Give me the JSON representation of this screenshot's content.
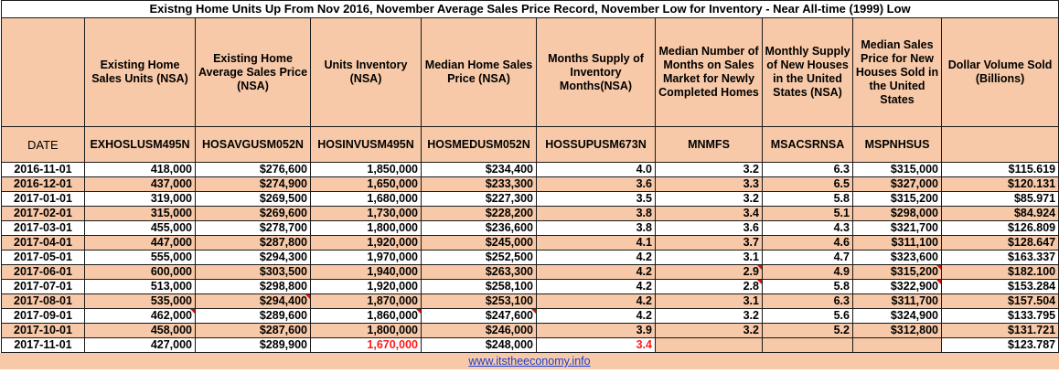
{
  "title": "Existng Home Units Up From Nov 2016, November Average Sales Price Record, November Low for Inventory - Near All-time (1999) Low",
  "headers": [
    "",
    "Existing Home Sales Units (NSA)",
    "Existing Home Average Sales Price (NSA)",
    "Units Inventory (NSA)",
    "Median Home Sales Price (NSA)",
    "Months Supply of Inventory Months(NSA)",
    "Median Number of Months on Sales Market for Newly Completed Homes",
    "Monthly Supply of New Houses in the United States (NSA)",
    "Median Sales Price for New Houses Sold in the United States",
    "Dollar Volume Sold (Billions)"
  ],
  "codes": [
    "DATE",
    "EXHOSLUSM495N",
    "HOSAVGUSM052N",
    "HOSINVUSM495N",
    "HOSMEDUSM052N",
    "HOSSUPUSM673N",
    "MNMFS",
    "MSACSRNSA",
    "MSPNHSUS",
    ""
  ],
  "rows": [
    [
      "2016-11-01",
      "418,000",
      "$276,600",
      "1,850,000",
      "$234,400",
      "4.0",
      "3.2",
      "6.3",
      "$315,000",
      "$115.619"
    ],
    [
      "2016-12-01",
      "437,000",
      "$274,900",
      "1,650,000",
      "$233,300",
      "3.6",
      "3.3",
      "6.5",
      "$327,000",
      "$120.131"
    ],
    [
      "2017-01-01",
      "319,000",
      "$269,500",
      "1,680,000",
      "$227,300",
      "3.5",
      "3.2",
      "5.8",
      "$315,200",
      "$85.971"
    ],
    [
      "2017-02-01",
      "315,000",
      "$269,600",
      "1,730,000",
      "$228,200",
      "3.8",
      "3.4",
      "5.1",
      "$298,000",
      "$84.924"
    ],
    [
      "2017-03-01",
      "455,000",
      "$278,700",
      "1,800,000",
      "$236,600",
      "3.8",
      "3.6",
      "4.3",
      "$321,700",
      "$126.809"
    ],
    [
      "2017-04-01",
      "447,000",
      "$287,800",
      "1,920,000",
      "$245,000",
      "4.1",
      "3.7",
      "4.6",
      "$311,100",
      "$128.647"
    ],
    [
      "2017-05-01",
      "555,000",
      "$294,300",
      "1,970,000",
      "$252,500",
      "4.2",
      "3.1",
      "4.7",
      "$323,600",
      "$163.337"
    ],
    [
      "2017-06-01",
      "600,000",
      "$303,500",
      "1,940,000",
      "$263,300",
      "4.2",
      "2.9",
      "4.9",
      "$315,200",
      "$182.100"
    ],
    [
      "2017-07-01",
      "513,000",
      "$298,800",
      "1,920,000",
      "$258,100",
      "4.2",
      "2.8",
      "5.8",
      "$322,900",
      "$153.284"
    ],
    [
      "2017-08-01",
      "535,000",
      "$294,400",
      "1,870,000",
      "$253,100",
      "4.2",
      "3.1",
      "6.3",
      "$311,700",
      "$157.504"
    ],
    [
      "2017-09-01",
      "462,000",
      "$289,600",
      "1,860,000",
      "$247,600",
      "4.2",
      "3.2",
      "5.6",
      "$324,900",
      "$133.795"
    ],
    [
      "2017-10-01",
      "458,000",
      "$287,600",
      "1,800,000",
      "$246,000",
      "3.9",
      "3.2",
      "5.2",
      "$312,800",
      "$131.721"
    ],
    [
      "2017-11-01",
      "427,000",
      "$289,900",
      "1,670,000",
      "$248,000",
      "3.4",
      "",
      "",
      "",
      "$123.787"
    ]
  ],
  "highlight_color": "#ff1a1a",
  "footer_link": "www.itstheeconomy.info"
}
